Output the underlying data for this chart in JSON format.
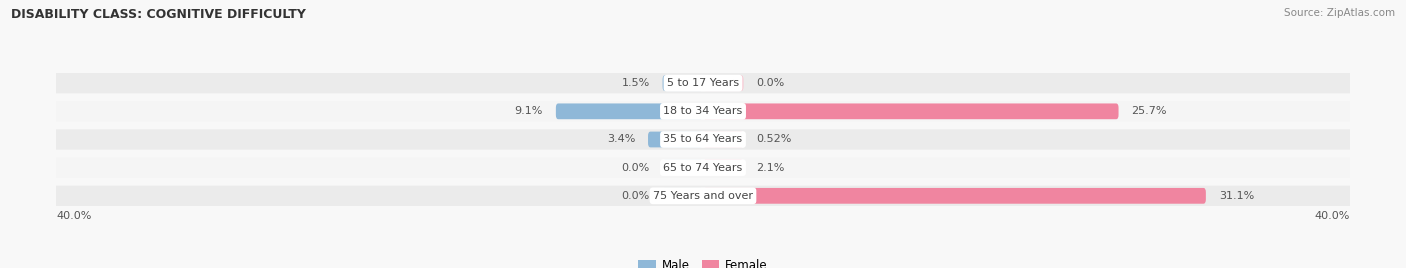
{
  "title": "DISABILITY CLASS: COGNITIVE DIFFICULTY",
  "source": "Source: ZipAtlas.com",
  "categories": [
    "5 to 17 Years",
    "18 to 34 Years",
    "35 to 64 Years",
    "65 to 74 Years",
    "75 Years and over"
  ],
  "male_values": [
    1.5,
    9.1,
    3.4,
    0.0,
    0.0
  ],
  "female_values": [
    0.0,
    25.7,
    0.52,
    2.1,
    31.1
  ],
  "male_label_values": [
    "1.5%",
    "9.1%",
    "3.4%",
    "0.0%",
    "0.0%"
  ],
  "female_label_values": [
    "0.0%",
    "25.7%",
    "0.52%",
    "2.1%",
    "31.1%"
  ],
  "male_color": "#8fb8d8",
  "female_color": "#f085a0",
  "male_stub_color": "#b8d4e8",
  "female_stub_color": "#f8c0cc",
  "axis_max": 40.0,
  "stub_min": 2.5,
  "row_bg_color": "#ebebeb",
  "row_bg_color_alt": "#f5f5f5",
  "background_color": "#f8f8f8",
  "label_color": "#555555",
  "category_color": "#444444",
  "title_color": "#333333",
  "source_color": "#888888"
}
